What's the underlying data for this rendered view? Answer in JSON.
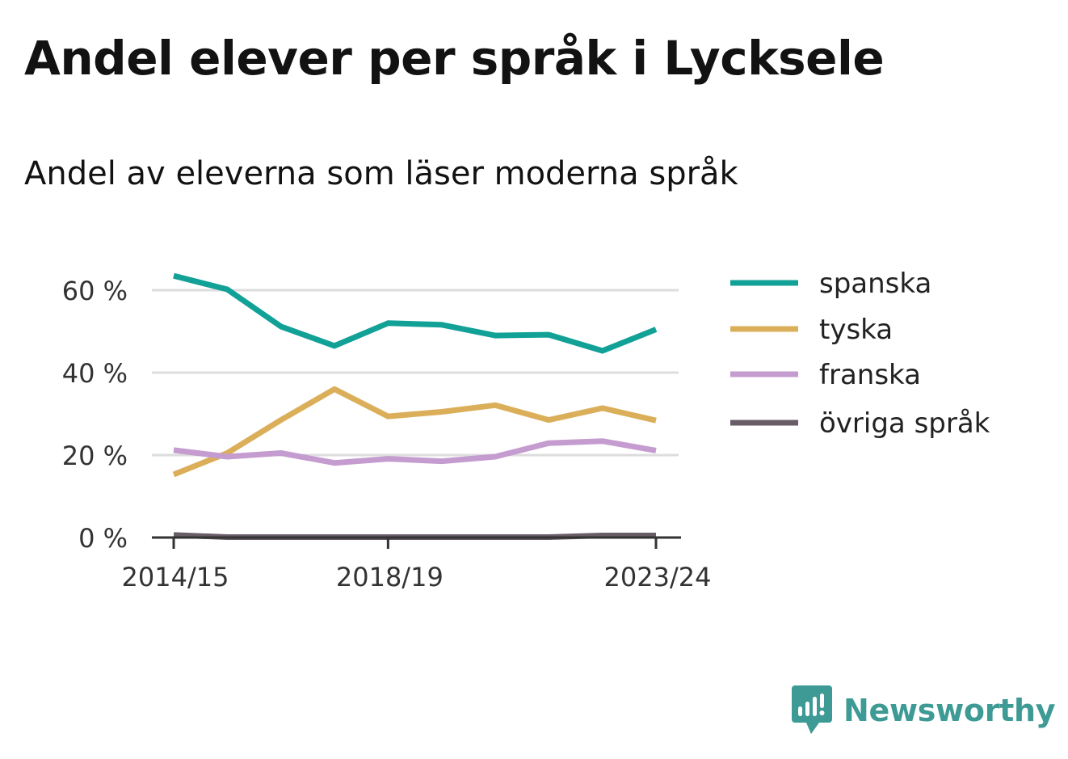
{
  "title": "Andel elever per språk i Lycksele",
  "subtitle": "Andel av eleverna som läser moderna språk",
  "brand": {
    "name": "Newsworthy",
    "icon": "newsworthy-logo-icon",
    "color": "#3e9a94"
  },
  "chart_data": {
    "type": "line",
    "x": [
      "2014/15",
      "2015/16",
      "2016/17",
      "2017/18",
      "2018/19",
      "2019/20",
      "2020/21",
      "2021/22",
      "2022/23",
      "2023/24"
    ],
    "x_tick_labels": [
      "2014/15",
      "2018/19",
      "2023/24"
    ],
    "y_ticks": [
      {
        "value": 0,
        "label": "0 %"
      },
      {
        "value": 20,
        "label": "20 %"
      },
      {
        "value": 40,
        "label": "40 %"
      },
      {
        "value": 60,
        "label": "60 %"
      }
    ],
    "ylim": [
      0,
      70
    ],
    "grid": true,
    "legend_position": "right",
    "series": [
      {
        "name": "spanska",
        "color": "#11a197",
        "values": [
          63.5,
          60.2,
          51.2,
          46.5,
          52.0,
          51.6,
          49.0,
          49.2,
          45.3,
          50.5
        ]
      },
      {
        "name": "tyska",
        "color": "#dbaf5a",
        "values": [
          15.3,
          20.5,
          28.5,
          36.0,
          29.4,
          30.5,
          32.1,
          28.5,
          31.4,
          28.4
        ]
      },
      {
        "name": "franska",
        "color": "#c59cd0",
        "values": [
          21.2,
          19.6,
          20.5,
          18.1,
          19.1,
          18.5,
          19.6,
          22.9,
          23.4,
          21.1
        ]
      },
      {
        "name": "övriga språk",
        "color": "#685c67",
        "values": [
          0.6,
          0.1,
          0.1,
          0.1,
          0.1,
          0.1,
          0.1,
          0.1,
          0.5,
          0.5
        ]
      }
    ]
  }
}
